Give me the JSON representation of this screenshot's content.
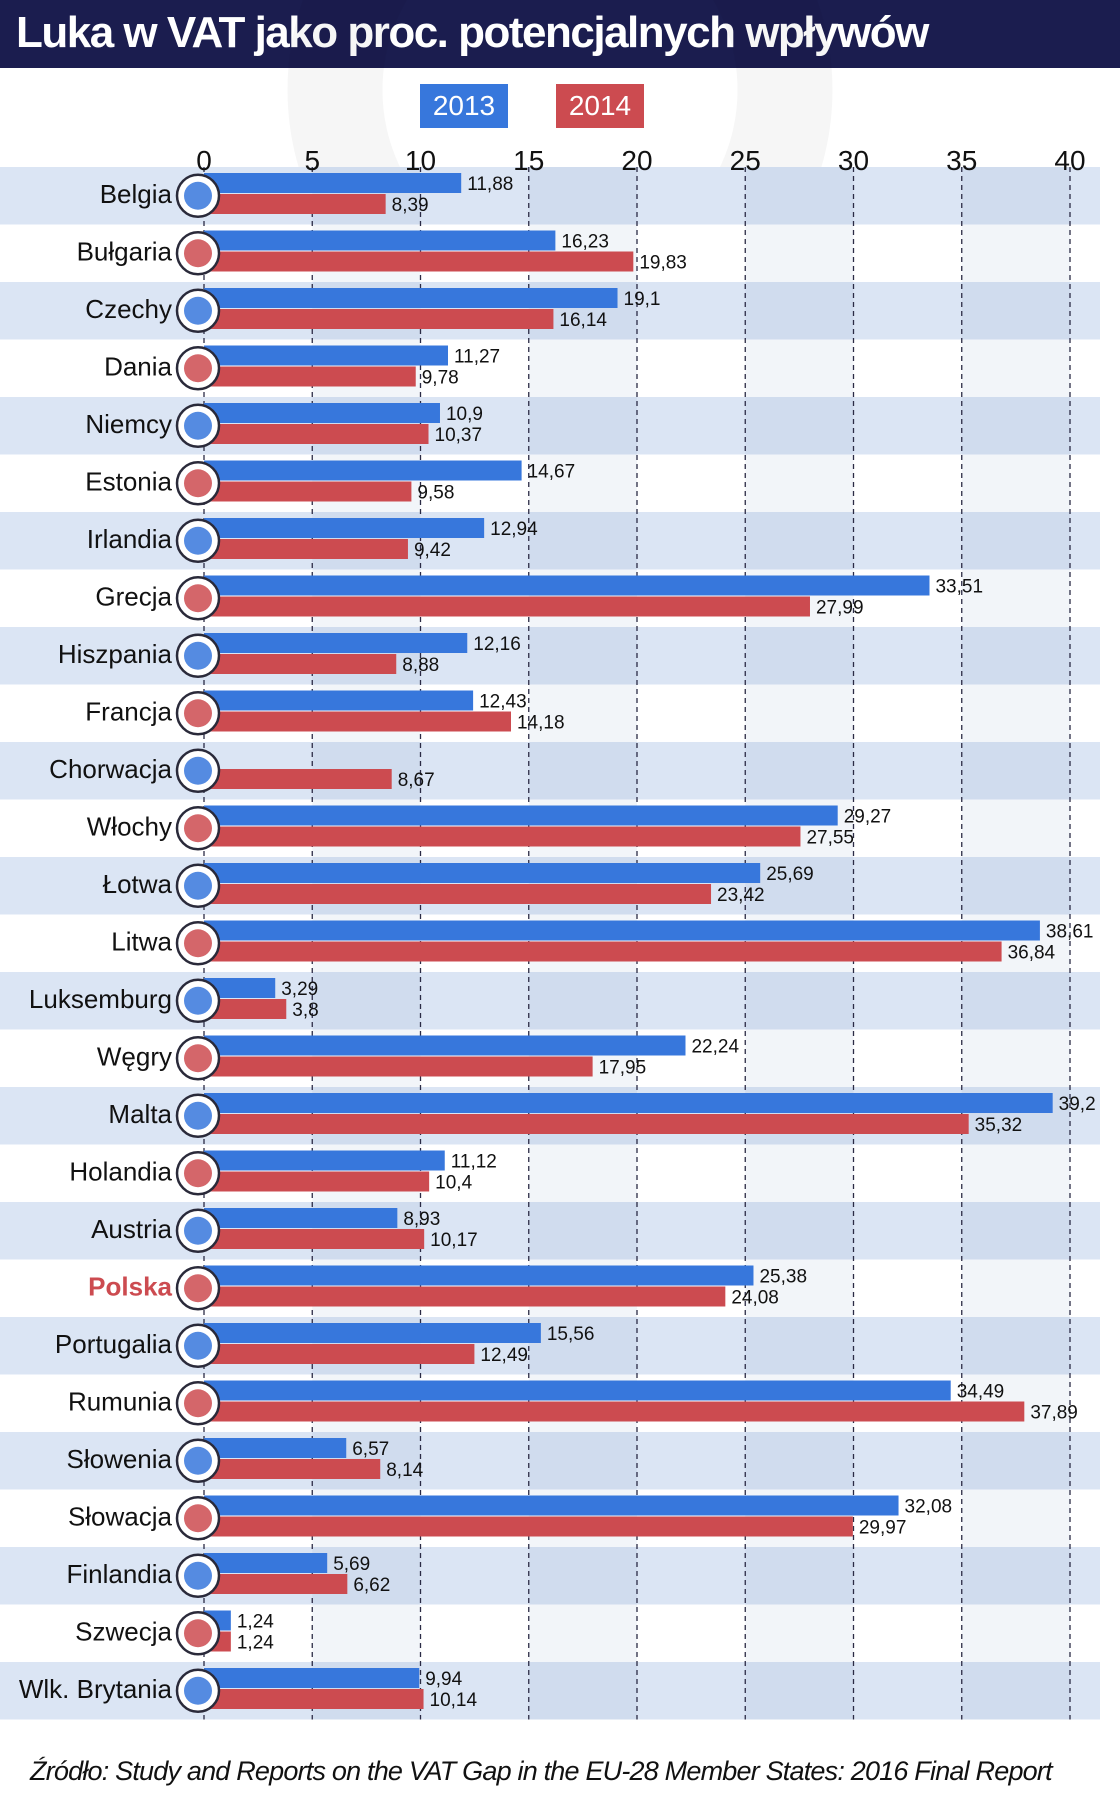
{
  "title": "Luka w VAT jako proc. potencjalnych wpływów",
  "source": "Źródło: Study and Reports on the VAT Gap in the EU-28 Member States: 2016 Final Report",
  "colors": {
    "series_2013": "#3777dc",
    "series_2014": "#cc4b50",
    "title_bg": "#1b1d4f",
    "highlight_label": "#cc4b50",
    "band_even": "#dbe5f4",
    "band_odd": "#ffffff"
  },
  "chart_data": {
    "type": "bar",
    "orientation": "horizontal",
    "title": "Luka w VAT jako proc. potencjalnych wpływów",
    "xlim": [
      0,
      40
    ],
    "x_ticks": [
      "0",
      "5",
      "10",
      "15",
      "20",
      "25",
      "30",
      "35",
      "40"
    ],
    "grid": "vertical dashed lines",
    "legend_position": "top",
    "categories": [
      "Belgia",
      "Bułgaria",
      "Czechy",
      "Dania",
      "Niemcy",
      "Estonia",
      "Irlandia",
      "Grecja",
      "Hiszpania",
      "Francja",
      "Chorwacja",
      "Włochy",
      "Łotwa",
      "Litwa",
      "Luksemburg",
      "Węgry",
      "Malta",
      "Holandia",
      "Austria",
      "Polska",
      "Portugalia",
      "Rumunia",
      "Słowenia",
      "Słowacja",
      "Finlandia",
      "Szwecja",
      "Wlk. Brytania"
    ],
    "highlighted_category": "Polska",
    "flag_icons": [
      "belgium-flag-icon",
      "bulgaria-flag-icon",
      "czechia-flag-icon",
      "denmark-flag-icon",
      "germany-flag-icon",
      "estonia-flag-icon",
      "ireland-flag-icon",
      "greece-flag-icon",
      "spain-flag-icon",
      "france-flag-icon",
      "croatia-flag-icon",
      "italy-flag-icon",
      "latvia-flag-icon",
      "lithuania-flag-icon",
      "luxembourg-flag-icon",
      "hungary-flag-icon",
      "malta-flag-icon",
      "netherlands-flag-icon",
      "austria-flag-icon",
      "poland-flag-icon",
      "portugal-flag-icon",
      "romania-flag-icon",
      "slovenia-flag-icon",
      "slovakia-flag-icon",
      "finland-flag-icon",
      "sweden-flag-icon",
      "uk-flag-icon"
    ],
    "series": [
      {
        "name": "2013",
        "values": [
          11.88,
          16.23,
          19.1,
          11.27,
          10.9,
          14.67,
          12.94,
          33.51,
          12.16,
          12.43,
          null,
          29.27,
          25.69,
          38.61,
          3.29,
          22.24,
          39.2,
          11.12,
          8.93,
          25.38,
          15.56,
          34.49,
          6.57,
          32.08,
          5.69,
          1.24,
          9.94
        ],
        "labels": [
          "11,88",
          "16,23",
          "19,1",
          "11,27",
          "10,9",
          "14,67",
          "12,94",
          "33,51",
          "12,16",
          "12,43",
          "",
          "29,27",
          "25,69",
          "38,61",
          "3,29",
          "22,24",
          "39,2",
          "11,12",
          "8,93",
          "25,38",
          "15,56",
          "34,49",
          "6,57",
          "32,08",
          "5,69",
          "1,24",
          "9,94"
        ]
      },
      {
        "name": "2014",
        "values": [
          8.39,
          19.83,
          16.14,
          9.78,
          10.37,
          9.58,
          9.42,
          27.99,
          8.88,
          14.18,
          8.67,
          27.55,
          23.42,
          36.84,
          3.8,
          17.95,
          35.32,
          10.4,
          10.17,
          24.08,
          12.49,
          37.89,
          8.14,
          29.97,
          6.62,
          1.24,
          10.14
        ],
        "labels": [
          "8,39",
          "19,83",
          "16,14",
          "9,78",
          "10,37",
          "9,58",
          "9,42",
          "27,99",
          "8,88",
          "14,18",
          "8,67",
          "27,55",
          "23,42",
          "36,84",
          "3,8",
          "17,95",
          "35,32",
          "10,4",
          "10,17",
          "24,08",
          "12,49",
          "37,89",
          "8,14",
          "29,97",
          "6,62",
          "1,24",
          "10,14"
        ]
      }
    ]
  }
}
